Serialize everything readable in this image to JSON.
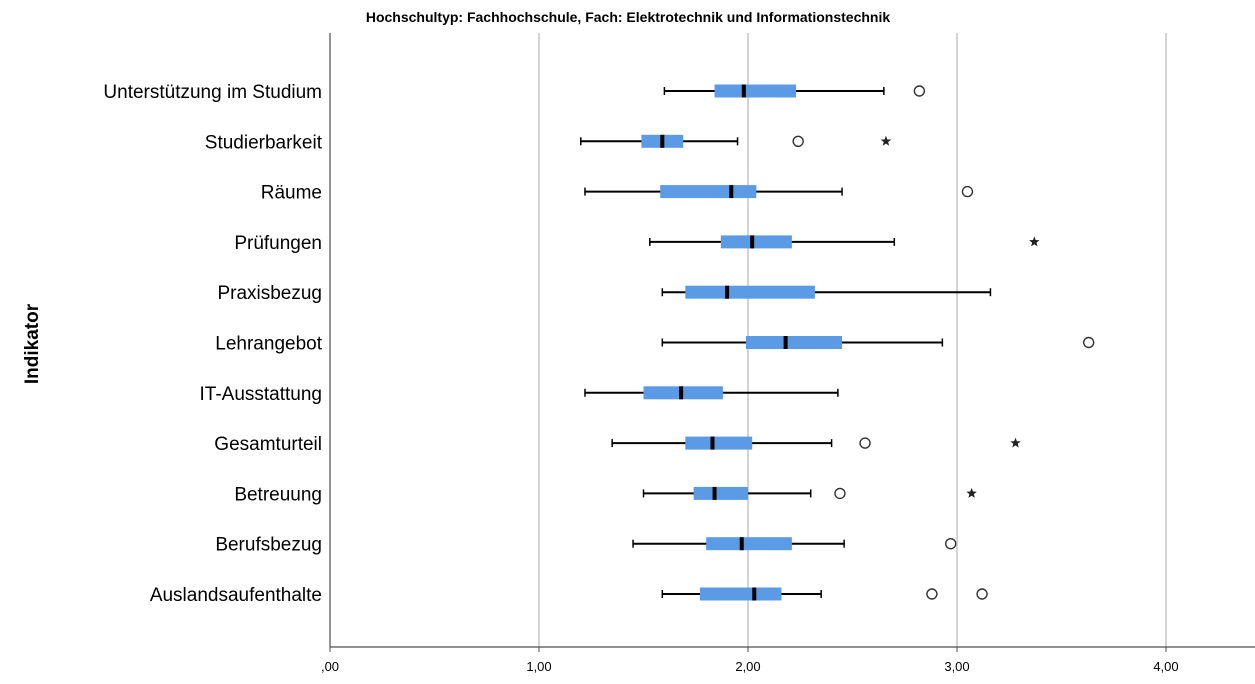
{
  "chart_data": {
    "type": "boxplot",
    "orientation": "horizontal",
    "title": "Hochschultyp: Fachhochschule, Fach: Elektrotechnik und Informationstechnik",
    "ylabel": "Indikator",
    "xlabel": "",
    "xlim": [
      0,
      4.4
    ],
    "x_ticks": [
      0,
      1,
      2,
      3,
      4
    ],
    "x_tick_labels": [
      ",00",
      "1,00",
      "2,00",
      "3,00",
      "4,00"
    ],
    "grid": "vertical",
    "box_color": "#5b9be6",
    "categories": [
      {
        "label": "Unterstützung im Studium",
        "whisker_low": 1.6,
        "q1": 1.84,
        "median": 1.98,
        "q3": 2.23,
        "whisker_high": 2.65,
        "outliers": [
          2.82
        ],
        "extremes": []
      },
      {
        "label": "Studierbarkeit",
        "whisker_low": 1.2,
        "q1": 1.49,
        "median": 1.59,
        "q3": 1.69,
        "whisker_high": 1.95,
        "outliers": [
          2.24
        ],
        "extremes": [
          2.66
        ]
      },
      {
        "label": "Räume",
        "whisker_low": 1.22,
        "q1": 1.58,
        "median": 1.92,
        "q3": 2.04,
        "whisker_high": 2.45,
        "outliers": [
          3.05
        ],
        "extremes": []
      },
      {
        "label": "Prüfungen",
        "whisker_low": 1.53,
        "q1": 1.87,
        "median": 2.02,
        "q3": 2.21,
        "whisker_high": 2.7,
        "outliers": [],
        "extremes": [
          3.37
        ]
      },
      {
        "label": "Praxisbezug",
        "whisker_low": 1.59,
        "q1": 1.7,
        "median": 1.9,
        "q3": 2.32,
        "whisker_high": 3.16,
        "outliers": [],
        "extremes": []
      },
      {
        "label": "Lehrangebot",
        "whisker_low": 1.59,
        "q1": 1.99,
        "median": 2.18,
        "q3": 2.45,
        "whisker_high": 2.93,
        "outliers": [
          3.63
        ],
        "extremes": []
      },
      {
        "label": "IT-Ausstattung",
        "whisker_low": 1.22,
        "q1": 1.5,
        "median": 1.68,
        "q3": 1.88,
        "whisker_high": 2.43,
        "outliers": [],
        "extremes": []
      },
      {
        "label": "Gesamturteil",
        "whisker_low": 1.35,
        "q1": 1.7,
        "median": 1.83,
        "q3": 2.02,
        "whisker_high": 2.4,
        "outliers": [
          2.56
        ],
        "extremes": [
          3.28
        ]
      },
      {
        "label": "Betreuung",
        "whisker_low": 1.5,
        "q1": 1.74,
        "median": 1.84,
        "q3": 2.0,
        "whisker_high": 2.3,
        "outliers": [
          2.44
        ],
        "extremes": [
          3.07
        ]
      },
      {
        "label": "Berufsbezug",
        "whisker_low": 1.45,
        "q1": 1.8,
        "median": 1.97,
        "q3": 2.21,
        "whisker_high": 2.46,
        "outliers": [
          2.97
        ],
        "extremes": []
      },
      {
        "label": "Auslandsaufenthalte",
        "whisker_low": 1.59,
        "q1": 1.77,
        "median": 2.03,
        "q3": 2.16,
        "whisker_high": 2.35,
        "outliers": [
          2.88,
          3.12
        ],
        "extremes": []
      }
    ]
  }
}
